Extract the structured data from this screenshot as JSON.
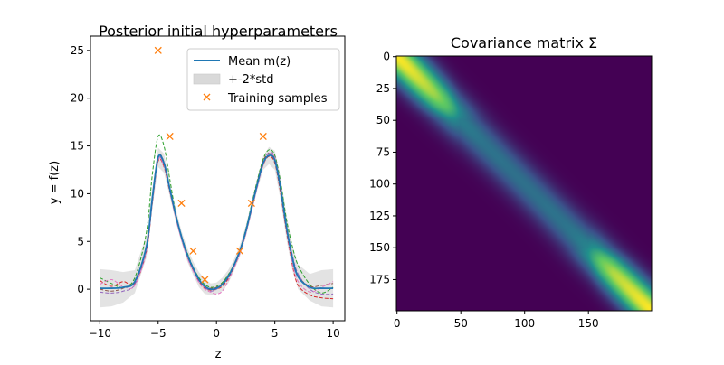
{
  "colors": {
    "mean": "#1f77b4",
    "band": "#d9d9d9",
    "samples": "#ff7f0e",
    "draws": [
      "#2ca02c",
      "#d62728",
      "#9467bd",
      "#8c564b",
      "#e377c2"
    ],
    "heatmap_low": "#440154",
    "heatmap_mid": "#21908d",
    "heatmap_high": "#fde725"
  },
  "chart_data": [
    {
      "type": "line",
      "title": "Posterior initial hyperparameters",
      "xlabel": "z",
      "ylabel": "y = f(z)",
      "xlim": [
        -10.8,
        11.0
      ],
      "ylim": [
        -3.3,
        26.5
      ],
      "xticks": [
        -10,
        -5,
        0,
        5,
        10
      ],
      "xtick_labels": [
        "−10",
        "−5",
        "0",
        "5",
        "10"
      ],
      "yticks": [
        0,
        5,
        10,
        15,
        20,
        25
      ],
      "ytick_labels": [
        "0",
        "5",
        "10",
        "15",
        "20",
        "25"
      ],
      "legend": {
        "placement": "top-right",
        "entries": [
          "Mean m(z)",
          "+-2*std",
          "Training samples"
        ]
      },
      "series": [
        {
          "name": "Mean m(z)",
          "x": [
            -10,
            -9,
            -8,
            -7,
            -6,
            -5.5,
            -5,
            -4.5,
            -4,
            -3.5,
            -3,
            -2.5,
            -2,
            -1.5,
            -1,
            -0.5,
            0,
            0.5,
            1,
            1.5,
            2,
            2.5,
            3,
            3.5,
            4,
            4.5,
            5,
            5.5,
            6,
            6.5,
            7,
            8,
            9,
            10
          ],
          "y": [
            0.1,
            0.1,
            0.2,
            0.8,
            4.5,
            9.5,
            13.8,
            13.2,
            10.5,
            7.8,
            5.5,
            3.6,
            2.2,
            1.0,
            0.3,
            0.0,
            0.1,
            0.5,
            1.3,
            2.5,
            4.0,
            6.0,
            8.5,
            11.0,
            13.2,
            14.0,
            13.5,
            10.5,
            6.5,
            3.3,
            1.3,
            0.2,
            0.1,
            0.1
          ]
        },
        {
          "name": "+-2*std",
          "x": [
            -10,
            -9,
            -8,
            -7,
            -6,
            -5.5,
            -5,
            -4.5,
            -4,
            -3.5,
            -3,
            -2.5,
            -2,
            -1.5,
            -1,
            -0.5,
            0,
            0.5,
            1,
            1.5,
            2,
            2.5,
            3,
            3.5,
            4,
            4.5,
            5,
            5.5,
            6,
            6.5,
            7,
            8,
            9,
            10
          ],
          "upper": [
            2.1,
            2.0,
            1.8,
            2.0,
            5.7,
            10.6,
            14.8,
            14.2,
            11.3,
            8.5,
            6.1,
            4.3,
            2.9,
            1.8,
            1.1,
            0.6,
            0.7,
            1.2,
            2.0,
            3.1,
            4.6,
            6.6,
            9.1,
            11.6,
            13.9,
            14.9,
            14.5,
            11.7,
            7.8,
            4.6,
            2.6,
            1.6,
            2.0,
            2.1
          ],
          "lower": [
            -1.9,
            -1.8,
            -1.4,
            -0.4,
            3.3,
            8.4,
            12.8,
            12.2,
            9.7,
            7.1,
            4.9,
            2.9,
            1.5,
            0.2,
            -0.5,
            -0.6,
            -0.5,
            -0.2,
            0.6,
            1.9,
            3.4,
            5.4,
            7.9,
            10.4,
            12.5,
            13.1,
            12.5,
            9.3,
            5.2,
            2.0,
            0.0,
            -1.2,
            -1.8,
            -1.9
          ]
        },
        {
          "name": "Training samples",
          "marker": "x",
          "x": [
            -5,
            -4,
            -3,
            -2,
            -1,
            2,
            3,
            4
          ],
          "y": [
            25,
            16,
            9,
            4,
            1,
            4,
            9,
            16
          ]
        }
      ],
      "posterior_draws": [
        {
          "x": [
            -10,
            -9,
            -8,
            -7,
            -6,
            -5.5,
            -5,
            -4.5,
            -4,
            -3.5,
            -3,
            -2.5,
            -2,
            -1.5,
            -1,
            -0.5,
            0,
            0.5,
            1,
            1.5,
            2,
            2.5,
            3,
            3.5,
            4,
            4.5,
            5,
            5.5,
            6,
            6.5,
            7,
            8,
            9,
            10
          ],
          "y": [
            1.2,
            0.6,
            0.2,
            1.2,
            6.0,
            12.0,
            16.0,
            15.0,
            11.5,
            8.0,
            5.6,
            3.8,
            2.3,
            1.2,
            0.5,
            0.2,
            0.3,
            0.7,
            1.5,
            2.6,
            4.1,
            6.2,
            8.8,
            11.4,
            13.6,
            14.6,
            14.0,
            11.2,
            7.3,
            4.5,
            2.5,
            0.5,
            -0.4,
            0.2
          ]
        },
        {
          "x": [
            -10,
            -9,
            -8,
            -7,
            -6,
            -5.5,
            -5,
            -4.5,
            -4,
            -3.5,
            -3,
            -2.5,
            -2,
            -1.5,
            -1,
            -0.5,
            0,
            0.5,
            1,
            1.5,
            2,
            2.5,
            3,
            3.5,
            4,
            4.5,
            5,
            5.5,
            6,
            6.5,
            7,
            8,
            9,
            10
          ],
          "y": [
            0.9,
            0.3,
            0.8,
            0.6,
            4.0,
            9.0,
            13.4,
            12.8,
            10.2,
            7.6,
            5.3,
            3.4,
            2.0,
            0.8,
            0.1,
            -0.1,
            0.0,
            0.3,
            1.1,
            2.3,
            3.8,
            5.8,
            8.3,
            10.8,
            13.0,
            13.9,
            13.2,
            10.0,
            6.0,
            2.6,
            0.4,
            -0.6,
            -0.9,
            -1.0
          ]
        },
        {
          "x": [
            -10,
            -9,
            -8,
            -7,
            -6,
            -5.5,
            -5,
            -4.5,
            -4,
            -3.5,
            -3,
            -2.5,
            -2,
            -1.5,
            -1,
            -0.5,
            0,
            0.5,
            1,
            1.5,
            2,
            2.5,
            3,
            3.5,
            4,
            4.5,
            5,
            5.5,
            6,
            6.5,
            7,
            8,
            9,
            10
          ],
          "y": [
            -0.3,
            -0.4,
            -0.2,
            0.5,
            4.2,
            9.2,
            13.6,
            13.0,
            10.4,
            7.7,
            5.4,
            3.5,
            2.1,
            0.9,
            0.2,
            -0.2,
            0.0,
            0.5,
            1.3,
            2.5,
            4.0,
            6.0,
            8.5,
            11.1,
            13.3,
            14.3,
            13.8,
            10.8,
            6.7,
            3.6,
            1.6,
            0.0,
            -0.5,
            -0.5
          ]
        },
        {
          "x": [
            -10,
            -9,
            -8,
            -7,
            -6,
            -5.5,
            -5,
            -4.5,
            -4,
            -3.5,
            -3,
            -2.5,
            -2,
            -1.5,
            -1,
            -0.5,
            0,
            0.5,
            1,
            1.5,
            2,
            2.5,
            3,
            3.5,
            4,
            4.5,
            5,
            5.5,
            6,
            6.5,
            7,
            8,
            9,
            10
          ],
          "y": [
            0.0,
            -0.2,
            0.1,
            0.9,
            4.6,
            9.6,
            13.9,
            13.3,
            10.6,
            7.9,
            5.5,
            3.6,
            2.2,
            1.0,
            0.3,
            0.1,
            0.2,
            0.6,
            1.4,
            2.6,
            4.1,
            6.1,
            8.6,
            11.2,
            13.4,
            14.2,
            13.6,
            10.6,
            6.6,
            3.4,
            1.4,
            0.3,
            0.4,
            0.6
          ]
        },
        {
          "x": [
            -10,
            -9,
            -8,
            -7,
            -6,
            -5.5,
            -5,
            -4.5,
            -4,
            -3.5,
            -3,
            -2.5,
            -2,
            -1.5,
            -1,
            -0.5,
            0,
            0.5,
            1,
            1.5,
            2,
            2.5,
            3,
            3.5,
            4,
            4.5,
            5,
            5.5,
            6,
            6.5,
            7,
            8,
            9,
            10
          ],
          "y": [
            0.5,
            1.0,
            0.3,
            0.4,
            4.1,
            9.1,
            13.5,
            12.9,
            10.3,
            7.5,
            5.2,
            3.3,
            1.9,
            0.7,
            0.0,
            -0.3,
            -0.5,
            -0.2,
            0.9,
            2.2,
            3.7,
            5.7,
            8.2,
            10.7,
            13.0,
            14.1,
            13.7,
            10.5,
            6.2,
            2.8,
            0.8,
            -0.3,
            0.2,
            0.8
          ]
        }
      ]
    },
    {
      "type": "heatmap",
      "title": "Covariance matrix Σ",
      "size": 200,
      "xticks": [
        0,
        50,
        100,
        150
      ],
      "xtick_labels": [
        "0",
        "50",
        "100",
        "150"
      ],
      "yticks": [
        0,
        25,
        50,
        75,
        100,
        125,
        150,
        175
      ],
      "ytick_labels": [
        "0",
        "25",
        "50",
        "75",
        "100",
        "125",
        "150",
        "175"
      ],
      "diagonal_profile": {
        "index": [
          0,
          10,
          20,
          30,
          40,
          50,
          60,
          70,
          80,
          90,
          100,
          110,
          120,
          130,
          140,
          150,
          160,
          170,
          180,
          190,
          199
        ],
        "variance": [
          1.0,
          0.97,
          0.92,
          0.85,
          0.72,
          0.42,
          0.4,
          0.38,
          0.38,
          0.37,
          0.37,
          0.37,
          0.38,
          0.38,
          0.4,
          0.45,
          0.75,
          0.88,
          0.93,
          0.97,
          1.0
        ]
      },
      "band_width": 14
    }
  ]
}
